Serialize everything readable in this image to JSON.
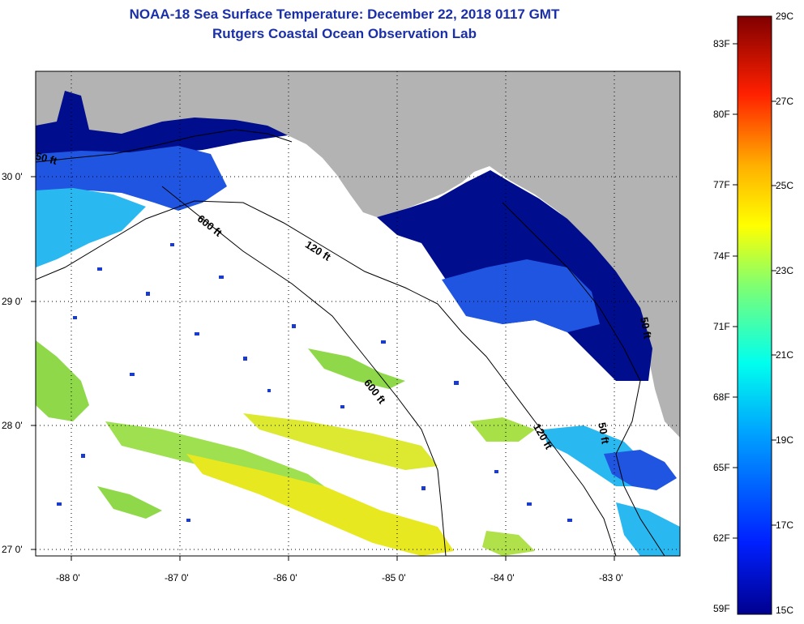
{
  "header": {
    "title": "NOAA-18 Sea Surface Temperature:  December 22, 2018 0117 GMT",
    "subtitle": "Rutgers Coastal Ocean Observation Lab"
  },
  "axes": {
    "latitudes": [
      "30 0'",
      "29 0'",
      "28 0'",
      "27 0'"
    ],
    "longitudes": [
      "-88 0'",
      "-87 0'",
      "-86 0'",
      "-85 0'",
      "-84 0'",
      "-83 0'"
    ]
  },
  "isobaths": {
    "a": "50 ft",
    "b": "600 ft",
    "c": "120 ft",
    "d": "600 ft",
    "e": "120 ft",
    "f": "50 ft",
    "g": "50 ft"
  },
  "colorbar": {
    "fahrenheit": [
      "83F",
      "80F",
      "77F",
      "74F",
      "71F",
      "68F",
      "65F",
      "62F",
      "59F"
    ],
    "celsius": [
      "29C",
      "27C",
      "25C",
      "23C",
      "21C",
      "19C",
      "17C",
      "15C"
    ]
  },
  "colors": {
    "land": "#b3b3b3",
    "cloud": "#ffffff",
    "cold": "#000d8c",
    "mid_blue": "#1f55e0",
    "cyan": "#2ab8f0",
    "green": "#8ed84a",
    "yellow": "#e8e820",
    "title": "#1a2fa8"
  }
}
